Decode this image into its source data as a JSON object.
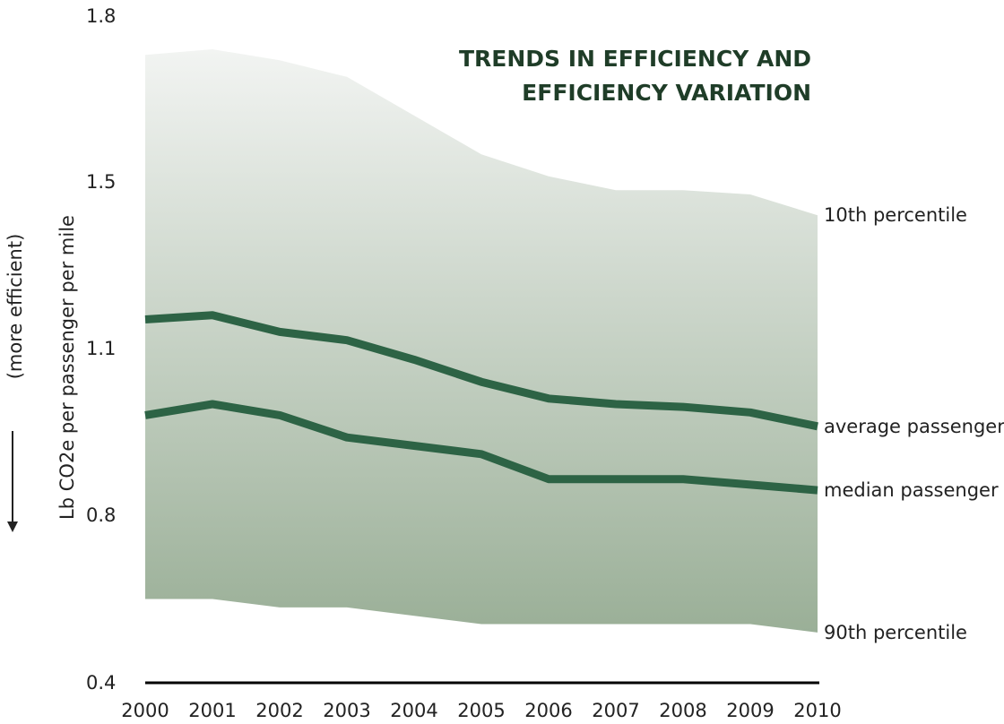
{
  "chart_data": {
    "type": "area",
    "title_lines": [
      "TRENDS IN EFFICIENCY AND",
      "EFFICIENCY VARIATION"
    ],
    "ylabel": "Lb CO2e per passenger per mile",
    "ylabel_note": "(more efficient)",
    "ylim": [
      0.4,
      1.8
    ],
    "y_ticks": [
      {
        "value": 1.8,
        "label": "1.8"
      },
      {
        "value": 1.5,
        "label": "1.5"
      },
      {
        "value": 1.1,
        "label": "1.1"
      },
      {
        "value": 0.8,
        "label": "0.8"
      },
      {
        "value": 0.4,
        "label": "0.4"
      }
    ],
    "x": [
      2000,
      2001,
      2002,
      2003,
      2004,
      2005,
      2006,
      2007,
      2008,
      2009,
      2010
    ],
    "x_labels": [
      "2000",
      "2001",
      "2002",
      "2003",
      "2004",
      "2005",
      "2006",
      "2007",
      "2008",
      "2009",
      "2010"
    ],
    "series": [
      {
        "name": "10th percentile",
        "role": "band-top",
        "values": [
          1.73,
          1.74,
          1.72,
          1.69,
          1.62,
          1.55,
          1.51,
          1.48,
          1.48,
          1.47,
          1.42
        ]
      },
      {
        "name": "average passenger",
        "role": "line",
        "values": [
          1.17,
          1.18,
          1.14,
          1.12,
          1.08,
          1.04,
          1.01,
          1.0,
          0.995,
          0.985,
          0.96
        ]
      },
      {
        "name": "median passenger",
        "role": "line",
        "values": [
          0.98,
          1.0,
          0.98,
          0.94,
          0.925,
          0.91,
          0.865,
          0.865,
          0.865,
          0.855,
          0.845
        ]
      },
      {
        "name": "90th percentile",
        "role": "band-bottom",
        "values": [
          0.6,
          0.6,
          0.58,
          0.58,
          0.56,
          0.54,
          0.54,
          0.54,
          0.54,
          0.54,
          0.52
        ]
      }
    ],
    "grid": false,
    "legend": "labels at right end of series",
    "colors": {
      "band_top": "#f2f4f2",
      "band_bottom": "#9aaf97",
      "line": "#2d6345",
      "title": "#1f3d28",
      "text": "#222222",
      "axis": "#000000"
    }
  }
}
